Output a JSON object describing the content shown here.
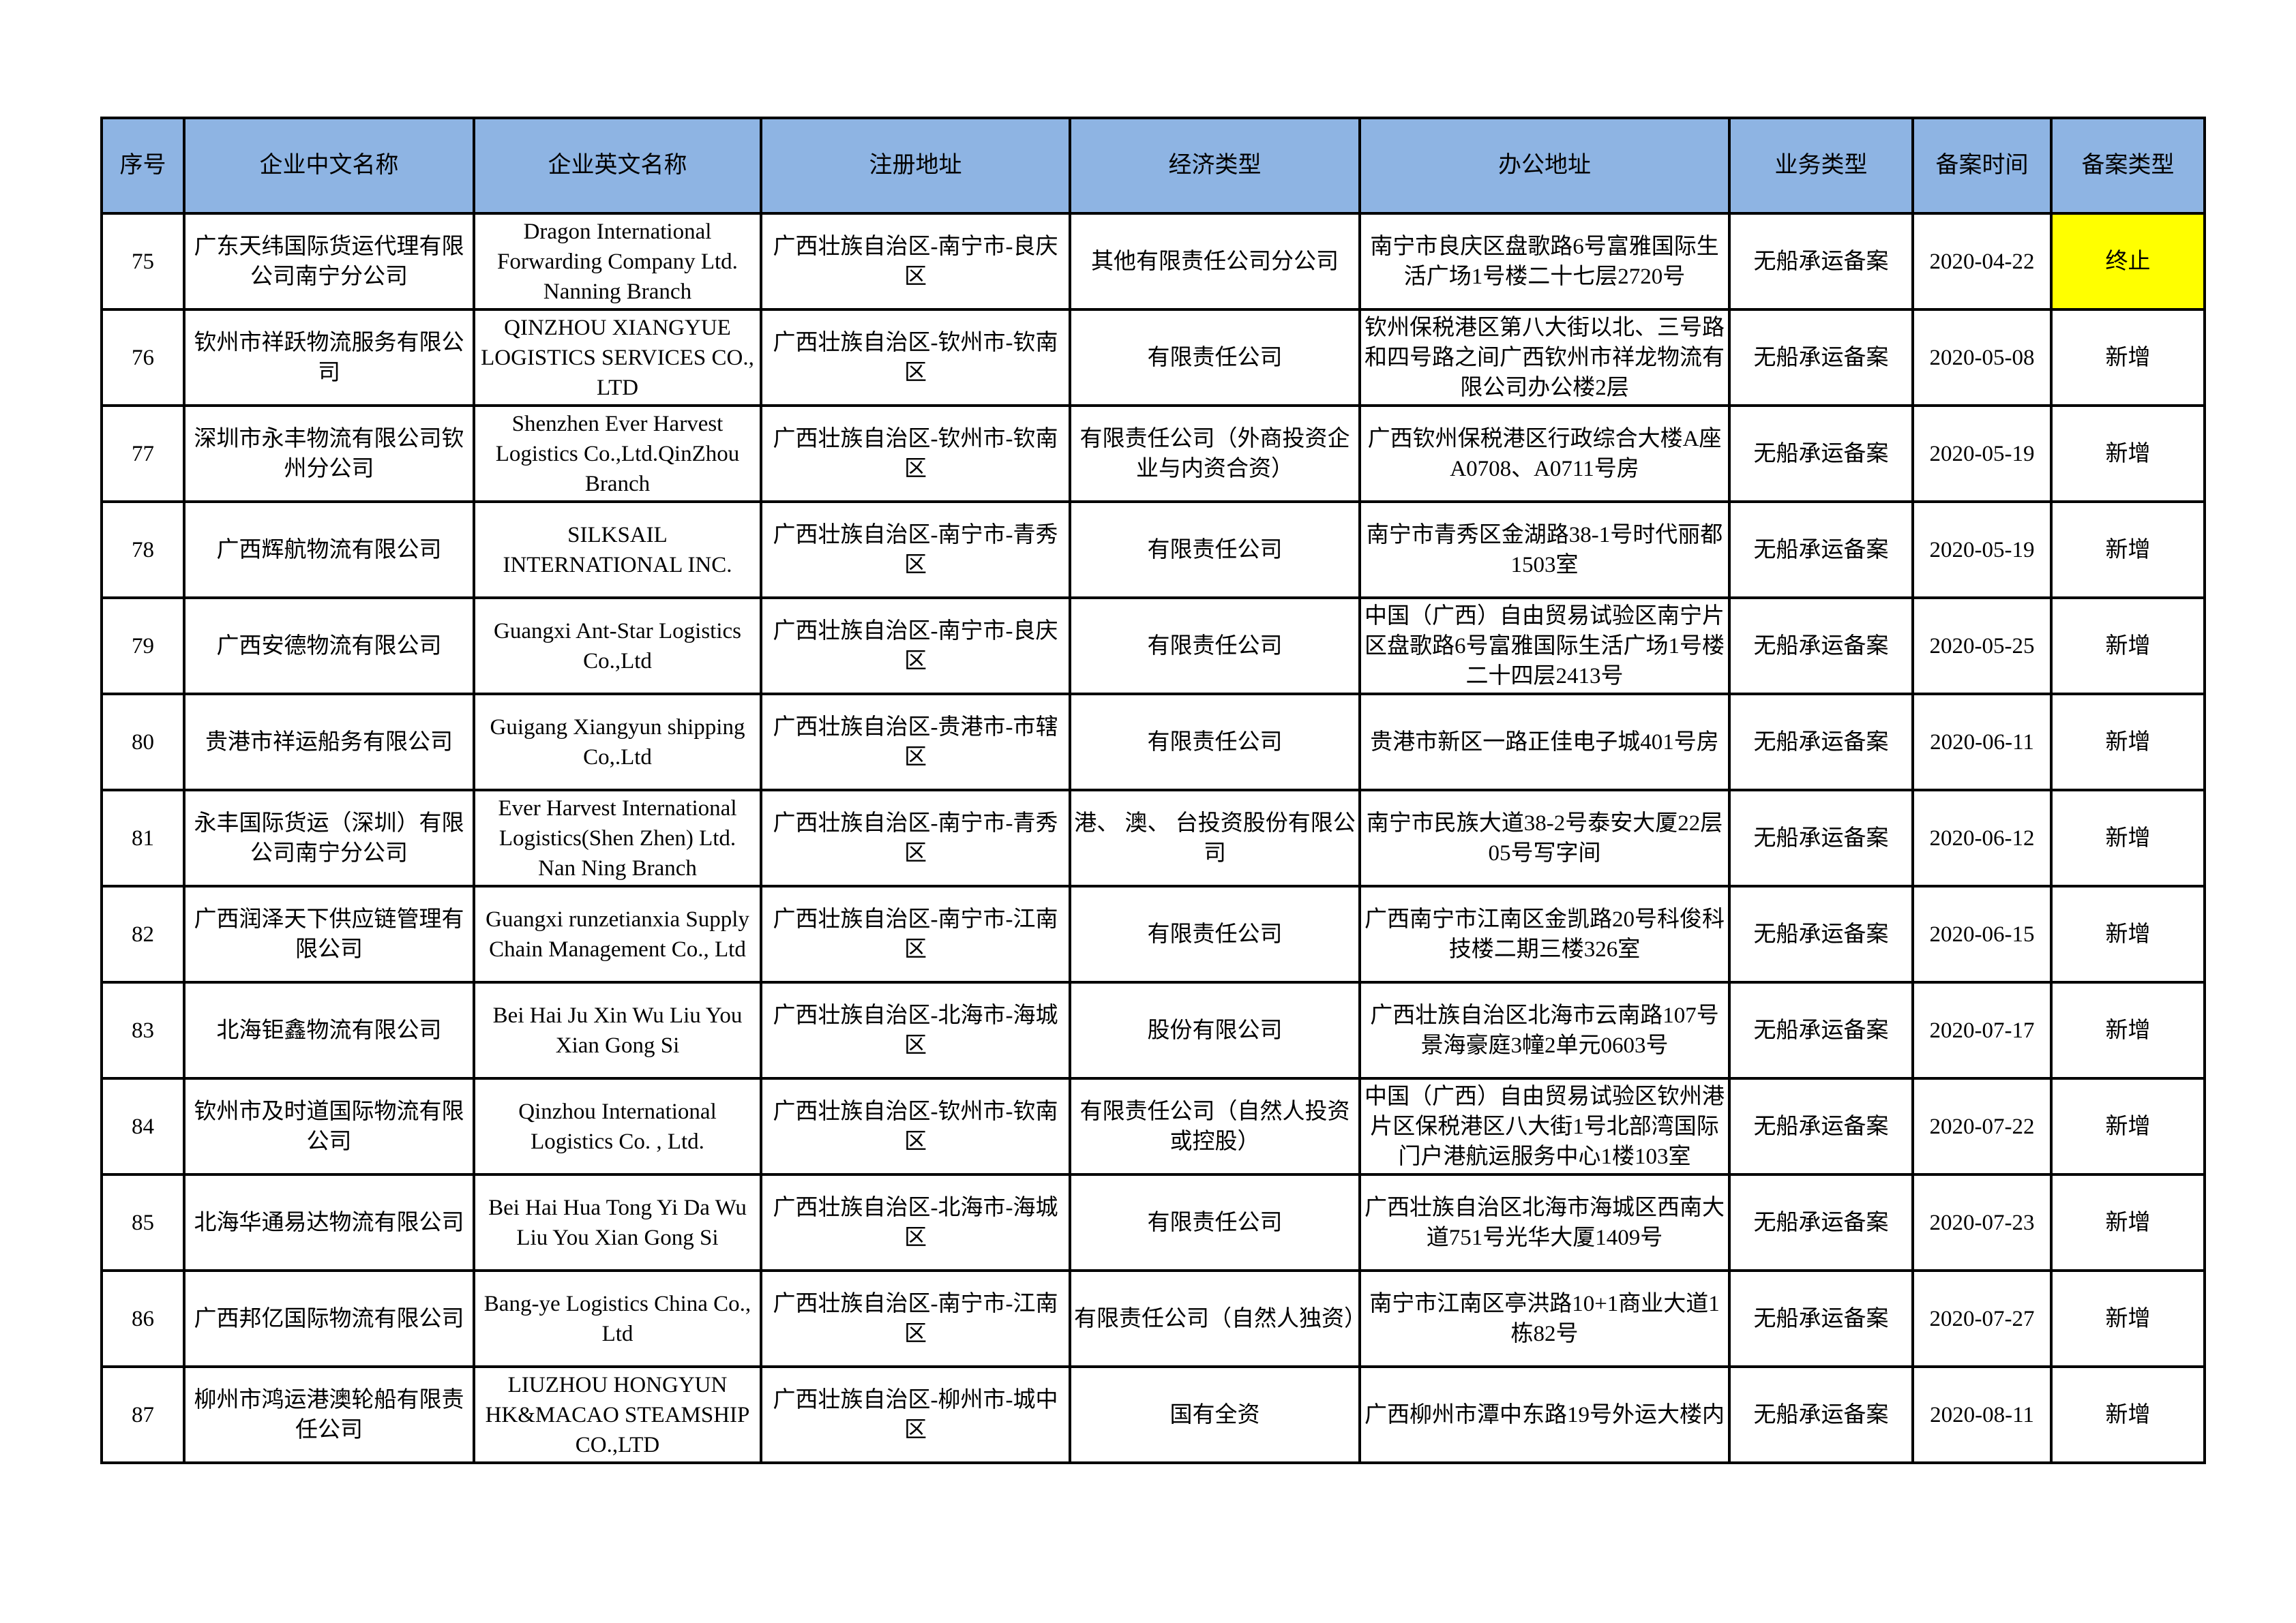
{
  "colors": {
    "header_bg": "#8EB4E3",
    "highlight": "#FFFF00"
  },
  "headers": [
    "序号",
    "企业中文名称",
    "企业英文名称",
    "注册地址",
    "经济类型",
    "办公地址",
    "业务类型",
    "备案时间",
    "备案类型"
  ],
  "rows": [
    {
      "no": "75",
      "cn": "广东天纬国际货运代理有限公司南宁分公司",
      "en": "Dragon International Forwarding Company Ltd. Nanning Branch",
      "reg": "广西壮族自治区-南宁市-良庆区",
      "econ": "其他有限责任公司分公司",
      "office": "南宁市良庆区盘歌路6号富雅国际生活广场1号楼二十七层2720号",
      "biz": "无船承运备案",
      "date": "2020-04-22",
      "type": "终止",
      "highlight": true
    },
    {
      "no": "76",
      "cn": "钦州市祥跃物流服务有限公司",
      "en": "QINZHOU XIANGYUE LOGISTICS SERVICES CO., LTD",
      "reg": "广西壮族自治区-钦州市-钦南区",
      "econ": "有限责任公司",
      "office": "钦州保税港区第八大街以北、三号路和四号路之间广西钦州市祥龙物流有限公司办公楼2层",
      "biz": "无船承运备案",
      "date": "2020-05-08",
      "type": "新增"
    },
    {
      "no": "77",
      "cn": "深圳市永丰物流有限公司钦州分公司",
      "en": "Shenzhen Ever Harvest Logistics Co.,Ltd.QinZhou Branch",
      "reg": "广西壮族自治区-钦州市-钦南区",
      "econ": "有限责任公司（外商投资企业与内资合资）",
      "office": "广西钦州保税港区行政综合大楼A座A0708、A0711号房",
      "biz": "无船承运备案",
      "date": "2020-05-19",
      "type": "新增"
    },
    {
      "no": "78",
      "cn": "广西辉航物流有限公司",
      "en": "SILKSAIL INTERNATIONAL INC.",
      "reg": "广西壮族自治区-南宁市-青秀区",
      "econ": "有限责任公司",
      "office": "南宁市青秀区金湖路38-1号时代丽都1503室",
      "biz": "无船承运备案",
      "date": "2020-05-19",
      "type": "新增"
    },
    {
      "no": "79",
      "cn": "广西安德物流有限公司",
      "en": "Guangxi  Ant-Star Logistics Co.,Ltd",
      "reg": "广西壮族自治区-南宁市-良庆区",
      "econ": "有限责任公司",
      "office": "中国（广西）自由贸易试验区南宁片区盘歌路6号富雅国际生活广场1号楼二十四层2413号",
      "biz": "无船承运备案",
      "date": "2020-05-25",
      "type": "新增"
    },
    {
      "no": "80",
      "cn": "贵港市祥运船务有限公司",
      "en": "Guigang Xiangyun shipping Co,.Ltd",
      "reg": "广西壮族自治区-贵港市-市辖区",
      "econ": "有限责任公司",
      "office": "贵港市新区一路正佳电子城401号房",
      "biz": "无船承运备案",
      "date": "2020-06-11",
      "type": "新增"
    },
    {
      "no": "81",
      "cn": "永丰国际货运（深圳）有限公司南宁分公司",
      "en": "Ever Harvest International Logistics(Shen Zhen) Ltd. Nan Ning Branch",
      "reg": "广西壮族自治区-南宁市-青秀区",
      "econ": "港、 澳、 台投资股份有限公司",
      "office": "南宁市民族大道38-2号泰安大厦22层05号写字间",
      "biz": "无船承运备案",
      "date": "2020-06-12",
      "type": "新增"
    },
    {
      "no": "82",
      "cn": "广西润泽天下供应链管理有限公司",
      "en": "Guangxi runzetianxia Supply Chain Management Co., Ltd",
      "reg": "广西壮族自治区-南宁市-江南区",
      "econ": "有限责任公司",
      "office": "广西南宁市江南区金凯路20号科俊科技楼二期三楼326室",
      "biz": "无船承运备案",
      "date": "2020-06-15",
      "type": "新增"
    },
    {
      "no": "83",
      "cn": "北海钜鑫物流有限公司",
      "en": "Bei Hai Ju Xin Wu Liu You Xian Gong Si",
      "reg": "广西壮族自治区-北海市-海城区",
      "econ": "股份有限公司",
      "office": "广西壮族自治区北海市云南路107号景海豪庭3幢2单元0603号",
      "biz": "无船承运备案",
      "date": "2020-07-17",
      "type": "新增"
    },
    {
      "no": "84",
      "cn": "钦州市及时道国际物流有限公司",
      "en": "Qinzhou International Logistics Co. , Ltd.",
      "reg": "广西壮族自治区-钦州市-钦南区",
      "econ": "有限责任公司（自然人投资或控股）",
      "office": "中国（广西）自由贸易试验区钦州港片区保税港区八大街1号北部湾国际门户港航运服务中心1楼103室",
      "biz": "无船承运备案",
      "date": "2020-07-22",
      "type": "新增"
    },
    {
      "no": "85",
      "cn": "北海华通易达物流有限公司",
      "en": "Bei Hai Hua Tong Yi Da Wu Liu You Xian Gong Si",
      "reg": "广西壮族自治区-北海市-海城区",
      "econ": "有限责任公司",
      "office": "广西壮族自治区北海市海城区西南大道751号光华大厦1409号",
      "biz": "无船承运备案",
      "date": "2020-07-23",
      "type": "新增"
    },
    {
      "no": "86",
      "cn": "广西邦亿国际物流有限公司",
      "en": "Bang-ye Logistics China Co., Ltd",
      "reg": "广西壮族自治区-南宁市-江南区",
      "econ": "有限责任公司（自然人独资）",
      "office": "南宁市江南区亭洪路10+1商业大道1栋82号",
      "biz": "无船承运备案",
      "date": "2020-07-27",
      "type": "新增"
    },
    {
      "no": "87",
      "cn": "柳州市鸿运港澳轮船有限责任公司",
      "en": "LIUZHOU HONGYUN HK&MACAO STEAMSHIP CO.,LTD",
      "reg": "广西壮族自治区-柳州市-城中区",
      "econ": "国有全资",
      "office": "广西柳州市潭中东路19号外运大楼内",
      "biz": "无船承运备案",
      "date": "2020-08-11",
      "type": "新增"
    }
  ]
}
